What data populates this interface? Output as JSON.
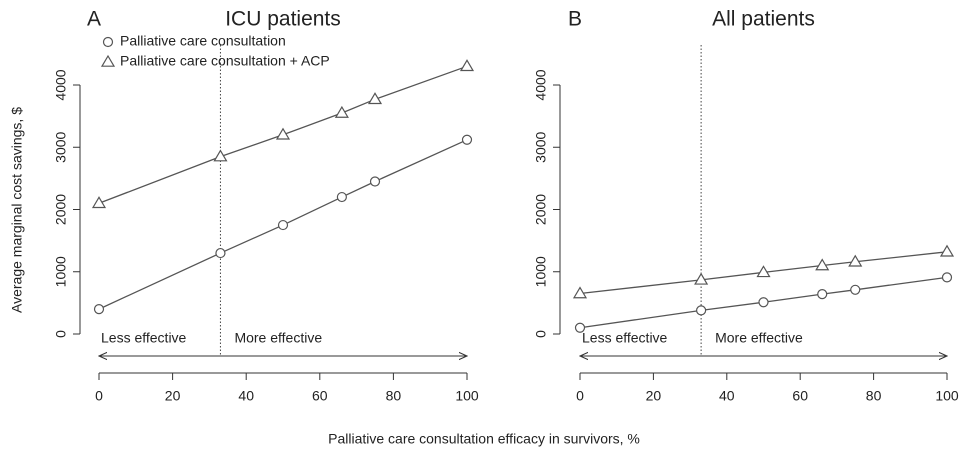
{
  "shared": {
    "x_label": "Palliative care consultation efficacy in survivors, %",
    "y_label": "Average marginal cost savings, $"
  },
  "chart_data": [
    {
      "type": "line",
      "panel": "A",
      "title": "ICU patients",
      "x": [
        0,
        33,
        50,
        66,
        75,
        100
      ],
      "series": [
        {
          "name": "Palliative care consultation",
          "marker": "circle",
          "color": "#555555",
          "values": [
            400,
            1300,
            1750,
            2200,
            2450,
            3120
          ]
        },
        {
          "name": "Palliative care consultation + ACP",
          "marker": "triangle",
          "color": "#555555",
          "values": [
            2100,
            2850,
            3200,
            3550,
            3770,
            4300
          ]
        }
      ],
      "threshold": 33,
      "annotations": [
        "Less effective",
        "More effective"
      ],
      "xlim": [
        0,
        100
      ],
      "xticks": [
        0,
        20,
        40,
        60,
        80,
        100
      ],
      "ylim": [
        0,
        4000
      ],
      "yticks": [
        0,
        1000,
        2000,
        3000,
        4000
      ],
      "legend": "top-left"
    },
    {
      "type": "line",
      "panel": "B",
      "title": "All patients",
      "x": [
        0,
        33,
        50,
        66,
        75,
        100
      ],
      "series": [
        {
          "marker": "circle",
          "color": "#555555",
          "values": [
            100,
            380,
            510,
            640,
            710,
            910
          ]
        },
        {
          "marker": "triangle",
          "color": "#555555",
          "values": [
            650,
            870,
            990,
            1100,
            1160,
            1320
          ]
        }
      ],
      "threshold": 33,
      "annotations": [
        "Less effective",
        "More effective"
      ],
      "xlim": [
        0,
        100
      ],
      "xticks": [
        0,
        20,
        40,
        60,
        80,
        100
      ],
      "ylim": [
        0,
        4000
      ],
      "yticks": [
        0,
        1000,
        2000,
        3000,
        4000
      ]
    }
  ]
}
